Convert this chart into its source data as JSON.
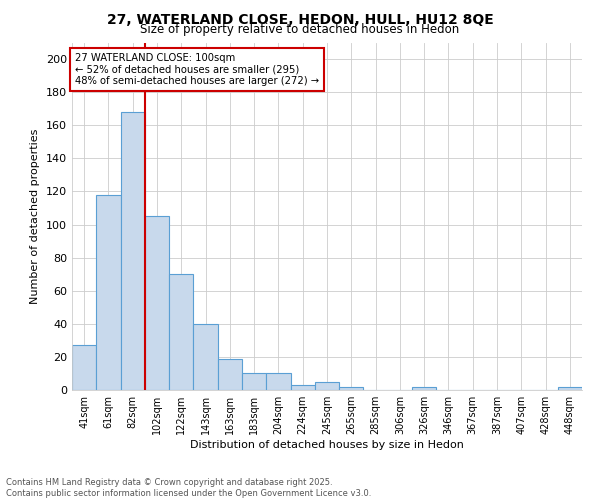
{
  "title_line1": "27, WATERLAND CLOSE, HEDON, HULL, HU12 8QE",
  "title_line2": "Size of property relative to detached houses in Hedon",
  "xlabel": "Distribution of detached houses by size in Hedon",
  "ylabel": "Number of detached properties",
  "categories": [
    "41sqm",
    "61sqm",
    "82sqm",
    "102sqm",
    "122sqm",
    "143sqm",
    "163sqm",
    "183sqm",
    "204sqm",
    "224sqm",
    "245sqm",
    "265sqm",
    "285sqm",
    "306sqm",
    "326sqm",
    "346sqm",
    "367sqm",
    "387sqm",
    "407sqm",
    "428sqm",
    "448sqm"
  ],
  "values": [
    27,
    118,
    168,
    105,
    70,
    40,
    19,
    10,
    10,
    3,
    5,
    2,
    0,
    0,
    2,
    0,
    0,
    0,
    0,
    0,
    2
  ],
  "bar_color": "#c8d9ec",
  "bar_edge_color": "#5a9fd4",
  "red_line_x": 2.5,
  "annotation_line1": "27 WATERLAND CLOSE: 100sqm",
  "annotation_line2": "← 52% of detached houses are smaller (295)",
  "annotation_line3": "48% of semi-detached houses are larger (272) →",
  "annotation_box_color": "#ffffff",
  "annotation_box_edge_color": "#cc0000",
  "red_line_color": "#cc0000",
  "ylim": [
    0,
    210
  ],
  "yticks": [
    0,
    20,
    40,
    60,
    80,
    100,
    120,
    140,
    160,
    180,
    200
  ],
  "footer_line1": "Contains HM Land Registry data © Crown copyright and database right 2025.",
  "footer_line2": "Contains public sector information licensed under the Open Government Licence v3.0.",
  "background_color": "#ffffff",
  "grid_color": "#cccccc"
}
